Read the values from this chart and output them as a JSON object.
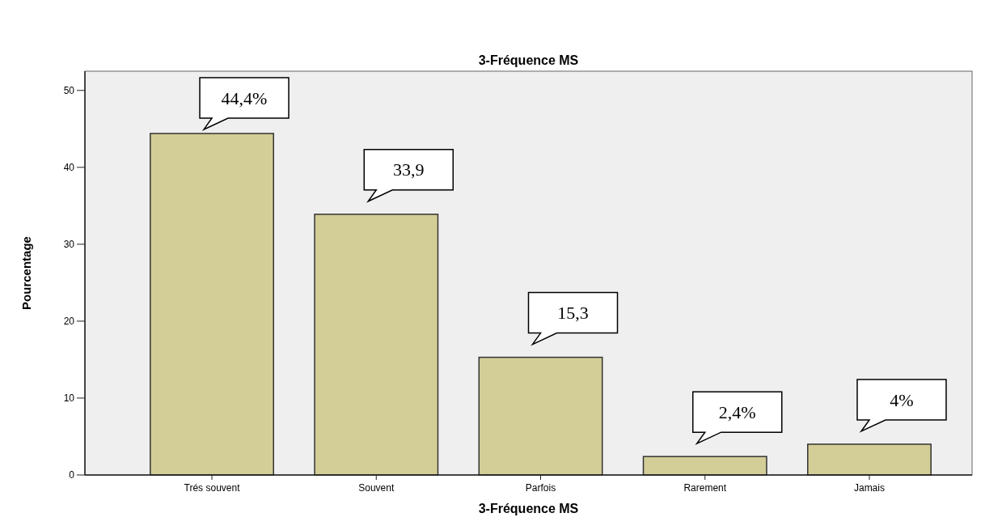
{
  "chart_data": {
    "type": "bar",
    "title": "3-Fréquence MS",
    "xlabel": "3-Fréquence MS",
    "ylabel": "Pourcentage",
    "categories": [
      "Trés souvent",
      "Souvent",
      "Parfois",
      "Rarement",
      "Jamais"
    ],
    "values": [
      44.4,
      33.9,
      15.3,
      2.4,
      4
    ],
    "value_labels": [
      "44,4%",
      "33,9",
      "15,3",
      "2,4%",
      "4%"
    ],
    "color": "#d3cd97",
    "ylim": [
      0,
      52.5
    ],
    "yticks": [
      0,
      10,
      20,
      30,
      40,
      50
    ],
    "grid": false
  }
}
